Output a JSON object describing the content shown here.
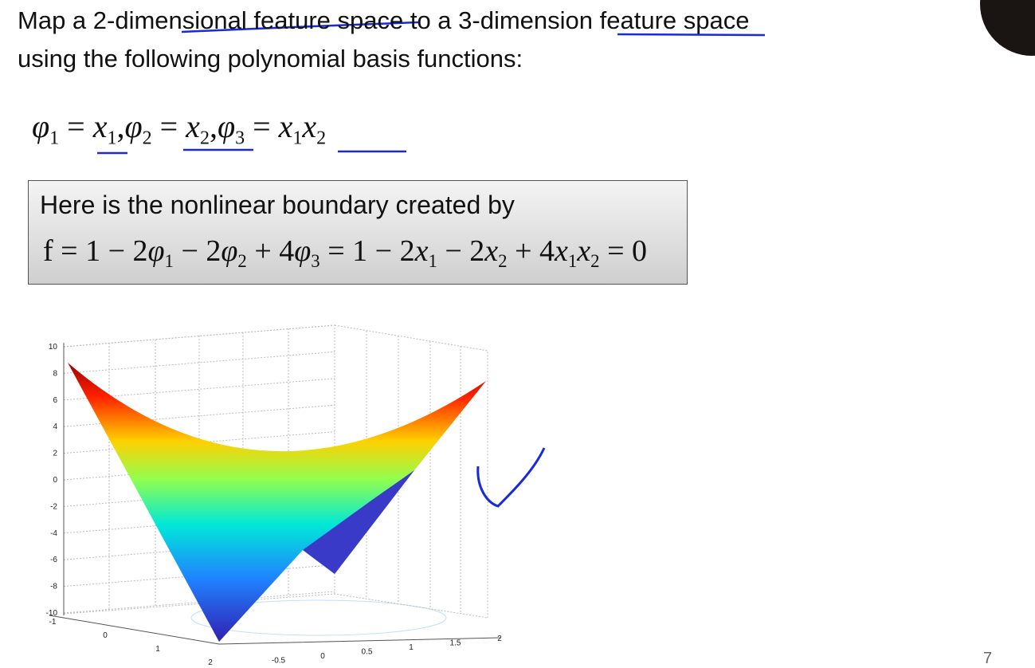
{
  "header": {
    "lines": [
      "Map a 2-dimensional feature space to a 3-dimension feature space",
      "using the following polynomial basis functions:"
    ]
  },
  "basis_equation": [
    {
      "text": "φ",
      "sub": "1"
    },
    " = ",
    {
      "text": "x",
      "sub": "1"
    },
    ",",
    {
      "text": "φ",
      "sub": "2"
    },
    " = ",
    {
      "text": "x",
      "sub": "2"
    },
    ",",
    {
      "text": "φ",
      "sub": "3"
    },
    " = ",
    {
      "text": "x",
      "sub": "1"
    },
    {
      "text": "x",
      "sub": "2"
    }
  ],
  "boundary_box": {
    "caption": "Here is the nonlinear boundary created by",
    "equation": [
      "f = 1 − 2",
      {
        "text": "φ",
        "sub": "1"
      },
      " − 2",
      {
        "text": "φ",
        "sub": "2"
      },
      " + 4",
      {
        "text": "φ",
        "sub": "3"
      },
      " = 1 − 2",
      {
        "text": "x",
        "sub": "1"
      },
      " − 2",
      {
        "text": "x",
        "sub": "2"
      },
      " + 4",
      {
        "text": "x",
        "sub": "1"
      },
      {
        "text": "x",
        "sub": "2"
      },
      " = 0"
    ]
  },
  "figure": {
    "z_range": [
      -10,
      10
    ],
    "z_ticks": [
      10,
      8,
      6,
      4,
      2,
      0,
      -2,
      -4,
      -6,
      -8,
      -10
    ],
    "x_ticks": [
      -0.5,
      0,
      0.5,
      1,
      1.5,
      2
    ],
    "y_ticks": [
      -1,
      0,
      1,
      2
    ]
  },
  "page_number": "7"
}
